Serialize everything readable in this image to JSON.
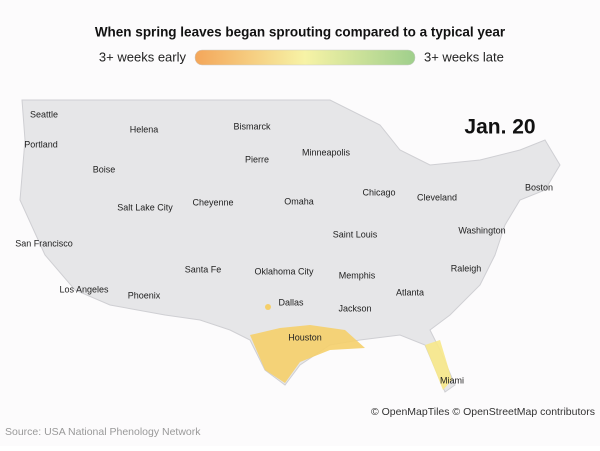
{
  "header": {
    "title": "When spring leaves began sprouting compared to a typical year",
    "legend": {
      "low": "3+ weeks early",
      "high": "3+ weeks late"
    }
  },
  "map": {
    "date": "Jan. 20",
    "cities": [
      "Seattle",
      "Helena",
      "Bismarck",
      "Portland",
      "Pierre",
      "Minneapolis",
      "Boise",
      "Chicago",
      "Boston",
      "Cheyenne",
      "Omaha",
      "Cleveland",
      "Salt Lake City",
      "Saint Louis",
      "Washington",
      "San Francisco",
      "Santa Fe",
      "Oklahoma City",
      "Memphis",
      "Raleigh",
      "Los Angeles",
      "Phoenix",
      "Atlanta",
      "Dallas",
      "Jackson",
      "Houston",
      "Miami"
    ]
  },
  "attribution": "© OpenMapTiles © OpenStreetMap contributors",
  "source": "Source: USA National Phenology Network"
}
